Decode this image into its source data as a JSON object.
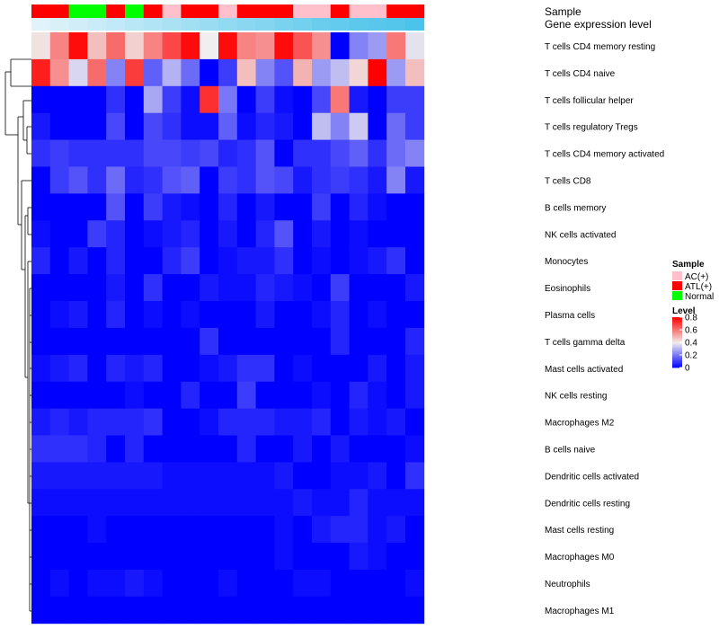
{
  "chart_data": {
    "type": "heatmap",
    "annotation_tracks": {
      "sample_label": "Sample",
      "gene_label": "Gene expression level",
      "sample_groups": [
        "ATL(+)",
        "ATL(+)",
        "Normal",
        "Normal",
        "ATL(+)",
        "Normal",
        "ATL(+)",
        "AC(+)",
        "ATL(+)",
        "ATL(+)",
        "AC(+)",
        "ATL(+)",
        "ATL(+)",
        "ATL(+)",
        "AC(+)",
        "AC(+)",
        "ATL(+)",
        "AC(+)",
        "AC(+)",
        "ATL(+)",
        "ATL(+)"
      ],
      "gene_expression_level": [
        0.05,
        0.1,
        0.15,
        0.2,
        0.25,
        0.3,
        0.35,
        0.4,
        0.45,
        0.5,
        0.55,
        0.6,
        0.65,
        0.7,
        0.75,
        0.8,
        0.85,
        0.9,
        0.92,
        0.95,
        1.0
      ],
      "gene_color_low": "#e8f6fb",
      "gene_color_high": "#4cc3ea"
    },
    "rows": [
      "T cells CD4 memory resting",
      "T cells CD4 naive",
      "T cells follicular helper",
      "T cells regulatory  Tregs",
      "T cells CD4 memory activated",
      "T cells CD8",
      "B cells memory",
      "NK cells activated",
      "Monocytes",
      "Eosinophils",
      "Plasma cells",
      "T cells gamma delta",
      "Mast cells activated",
      "NK cells resting",
      "Macrophages M2",
      "B cells naive",
      "Dendritic cells activated",
      "Dendritic cells resting",
      "Mast cells resting",
      "Macrophages M0",
      "Neutrophils",
      "Macrophages M1"
    ],
    "values": [
      [
        0.42,
        0.58,
        0.78,
        0.48,
        0.62,
        0.45,
        0.58,
        0.68,
        0.78,
        0.4,
        0.78,
        0.58,
        0.56,
        0.78,
        0.66,
        0.56,
        0.0,
        0.22,
        0.26,
        0.6,
        0.38
      ],
      [
        0.75,
        0.56,
        0.36,
        0.62,
        0.22,
        0.7,
        0.16,
        0.3,
        0.18,
        0.0,
        0.1,
        0.48,
        0.22,
        0.14,
        0.5,
        0.26,
        0.32,
        0.44,
        0.8,
        0.26,
        0.48
      ],
      [
        0.0,
        0.0,
        0.0,
        0.0,
        0.08,
        0.0,
        0.28,
        0.1,
        0.02,
        0.72,
        0.2,
        0.0,
        0.1,
        0.02,
        0.0,
        0.12,
        0.6,
        0.04,
        0.0,
        0.1,
        0.1
      ],
      [
        0.04,
        0.0,
        0.0,
        0.0,
        0.12,
        0.0,
        0.12,
        0.08,
        0.02,
        0.02,
        0.16,
        0.02,
        0.06,
        0.04,
        0.0,
        0.32,
        0.22,
        0.34,
        0.0,
        0.18,
        0.1
      ],
      [
        0.08,
        0.1,
        0.08,
        0.08,
        0.08,
        0.08,
        0.12,
        0.12,
        0.1,
        0.12,
        0.06,
        0.08,
        0.14,
        0.0,
        0.08,
        0.08,
        0.12,
        0.16,
        0.08,
        0.18,
        0.22
      ],
      [
        0.0,
        0.1,
        0.14,
        0.08,
        0.18,
        0.06,
        0.08,
        0.14,
        0.16,
        0.0,
        0.1,
        0.08,
        0.14,
        0.12,
        0.04,
        0.08,
        0.1,
        0.08,
        0.04,
        0.22,
        0.04
      ],
      [
        0.0,
        0.0,
        0.0,
        0.0,
        0.14,
        0.0,
        0.1,
        0.04,
        0.02,
        0.0,
        0.06,
        0.0,
        0.04,
        0.0,
        0.0,
        0.1,
        0.0,
        0.06,
        0.02,
        0.0,
        0.0
      ],
      [
        0.02,
        0.0,
        0.0,
        0.1,
        0.06,
        0.0,
        0.02,
        0.04,
        0.06,
        0.0,
        0.04,
        0.0,
        0.06,
        0.14,
        0.0,
        0.04,
        0.0,
        0.02,
        0.0,
        0.0,
        0.0
      ],
      [
        0.06,
        0.0,
        0.04,
        0.0,
        0.06,
        0.0,
        0.0,
        0.06,
        0.1,
        0.0,
        0.02,
        0.04,
        0.04,
        0.08,
        0.0,
        0.02,
        0.0,
        0.02,
        0.04,
        0.08,
        0.0
      ],
      [
        0.0,
        0.0,
        0.0,
        0.0,
        0.04,
        0.0,
        0.08,
        0.0,
        0.0,
        0.04,
        0.02,
        0.02,
        0.06,
        0.04,
        0.02,
        0.0,
        0.1,
        0.0,
        0.0,
        0.0,
        0.04
      ],
      [
        0.0,
        0.02,
        0.04,
        0.0,
        0.06,
        0.0,
        0.02,
        0.0,
        0.02,
        0.0,
        0.0,
        0.0,
        0.04,
        0.0,
        0.0,
        0.02,
        0.06,
        0.0,
        0.02,
        0.0,
        0.0
      ],
      [
        0.0,
        0.0,
        0.0,
        0.0,
        0.0,
        0.0,
        0.0,
        0.0,
        0.0,
        0.08,
        0.0,
        0.0,
        0.0,
        0.0,
        0.0,
        0.0,
        0.06,
        0.0,
        0.0,
        0.0,
        0.06
      ],
      [
        0.02,
        0.04,
        0.06,
        0.0,
        0.06,
        0.04,
        0.06,
        0.0,
        0.0,
        0.02,
        0.04,
        0.08,
        0.08,
        0.0,
        0.02,
        0.0,
        0.0,
        0.0,
        0.04,
        0.0,
        0.04
      ],
      [
        0.0,
        0.0,
        0.0,
        0.0,
        0.0,
        0.02,
        0.0,
        0.0,
        0.06,
        0.0,
        0.0,
        0.1,
        0.0,
        0.0,
        0.0,
        0.02,
        0.0,
        0.06,
        0.02,
        0.0,
        0.04
      ],
      [
        0.04,
        0.06,
        0.04,
        0.06,
        0.06,
        0.06,
        0.08,
        0.0,
        0.0,
        0.02,
        0.06,
        0.06,
        0.06,
        0.04,
        0.04,
        0.06,
        0.0,
        0.04,
        0.02,
        0.04,
        0.0
      ],
      [
        0.08,
        0.08,
        0.08,
        0.06,
        0.0,
        0.06,
        0.0,
        0.0,
        0.0,
        0.0,
        0.0,
        0.06,
        0.0,
        0.0,
        0.04,
        0.0,
        0.04,
        0.0,
        0.0,
        0.0,
        0.02
      ],
      [
        0.04,
        0.04,
        0.04,
        0.04,
        0.04,
        0.04,
        0.04,
        0.02,
        0.02,
        0.02,
        0.02,
        0.02,
        0.02,
        0.04,
        0.0,
        0.0,
        0.02,
        0.02,
        0.04,
        0.0,
        0.08
      ],
      [
        0.02,
        0.02,
        0.02,
        0.02,
        0.02,
        0.02,
        0.02,
        0.02,
        0.02,
        0.02,
        0.02,
        0.02,
        0.02,
        0.02,
        0.04,
        0.02,
        0.02,
        0.06,
        0.02,
        0.02,
        0.02
      ],
      [
        0.0,
        0.0,
        0.0,
        0.02,
        0.0,
        0.0,
        0.0,
        0.0,
        0.0,
        0.0,
        0.0,
        0.0,
        0.0,
        0.02,
        0.0,
        0.04,
        0.06,
        0.06,
        0.02,
        0.04,
        0.0
      ],
      [
        0.0,
        0.0,
        0.0,
        0.0,
        0.0,
        0.0,
        0.0,
        0.0,
        0.0,
        0.0,
        0.0,
        0.0,
        0.0,
        0.02,
        0.0,
        0.0,
        0.0,
        0.04,
        0.02,
        0.0,
        0.0
      ],
      [
        0.0,
        0.02,
        0.0,
        0.02,
        0.02,
        0.04,
        0.02,
        0.0,
        0.0,
        0.0,
        0.02,
        0.0,
        0.0,
        0.0,
        0.02,
        0.02,
        0.0,
        0.0,
        0.0,
        0.0,
        0.02
      ],
      [
        0.0,
        0.0,
        0.0,
        0.0,
        0.0,
        0.0,
        0.0,
        0.0,
        0.0,
        0.0,
        0.0,
        0.0,
        0.0,
        0.0,
        0.0,
        0.0,
        0.0,
        0.0,
        0.0,
        0.0,
        0.0
      ]
    ],
    "legend": {
      "sample_title": "Sample",
      "sample_entries": [
        {
          "label": "AC(+)",
          "color": "#ffc0cb"
        },
        {
          "label": "ATL(+)",
          "color": "#ff0000"
        },
        {
          "label": "Normal",
          "color": "#00ff00"
        }
      ],
      "level_title": "Level",
      "level_ticks": [
        "0.8",
        "0.6",
        "0.4",
        "0.2",
        "0"
      ],
      "level_tick_values": [
        0.8,
        0.6,
        0.4,
        0.2,
        0
      ],
      "level_range": [
        0,
        0.8
      ],
      "placement": "right"
    },
    "colors": {
      "low": "#0000ff",
      "mid": "#f0eeee",
      "high": "#ff0000"
    },
    "color_scale_midpoint": 0.4,
    "row_dendrogram": true
  }
}
